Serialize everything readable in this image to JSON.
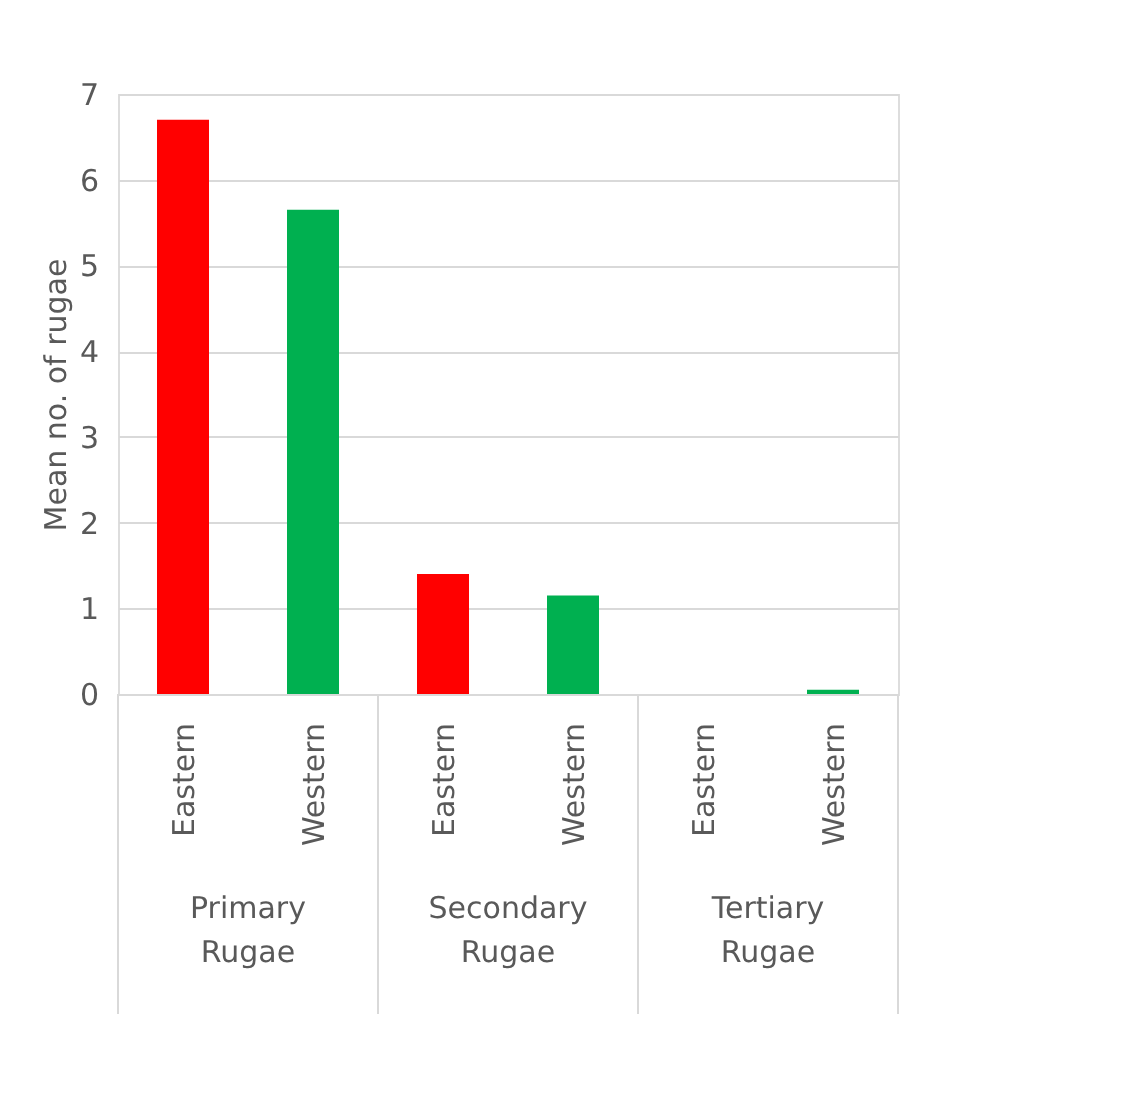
{
  "chart_data": {
    "type": "bar",
    "ylabel": "Mean no. of rugae",
    "categories": [
      "Eastern",
      "Western",
      "Eastern",
      "Western",
      "Eastern",
      "Western"
    ],
    "values": [
      6.7,
      5.65,
      1.4,
      1.15,
      0.0,
      0.05
    ],
    "colors": [
      "#ff0000",
      "#00b050",
      "#ff0000",
      "#00b050",
      "#ff0000",
      "#00b050"
    ],
    "annotations": [
      "Primary Rugae",
      "Secondary Rugae",
      "Tertiary Rugae"
    ],
    "ylim": [
      0,
      7
    ],
    "yticks": [
      0,
      1,
      2,
      3,
      4,
      5,
      6,
      7
    ],
    "grid": "y"
  }
}
